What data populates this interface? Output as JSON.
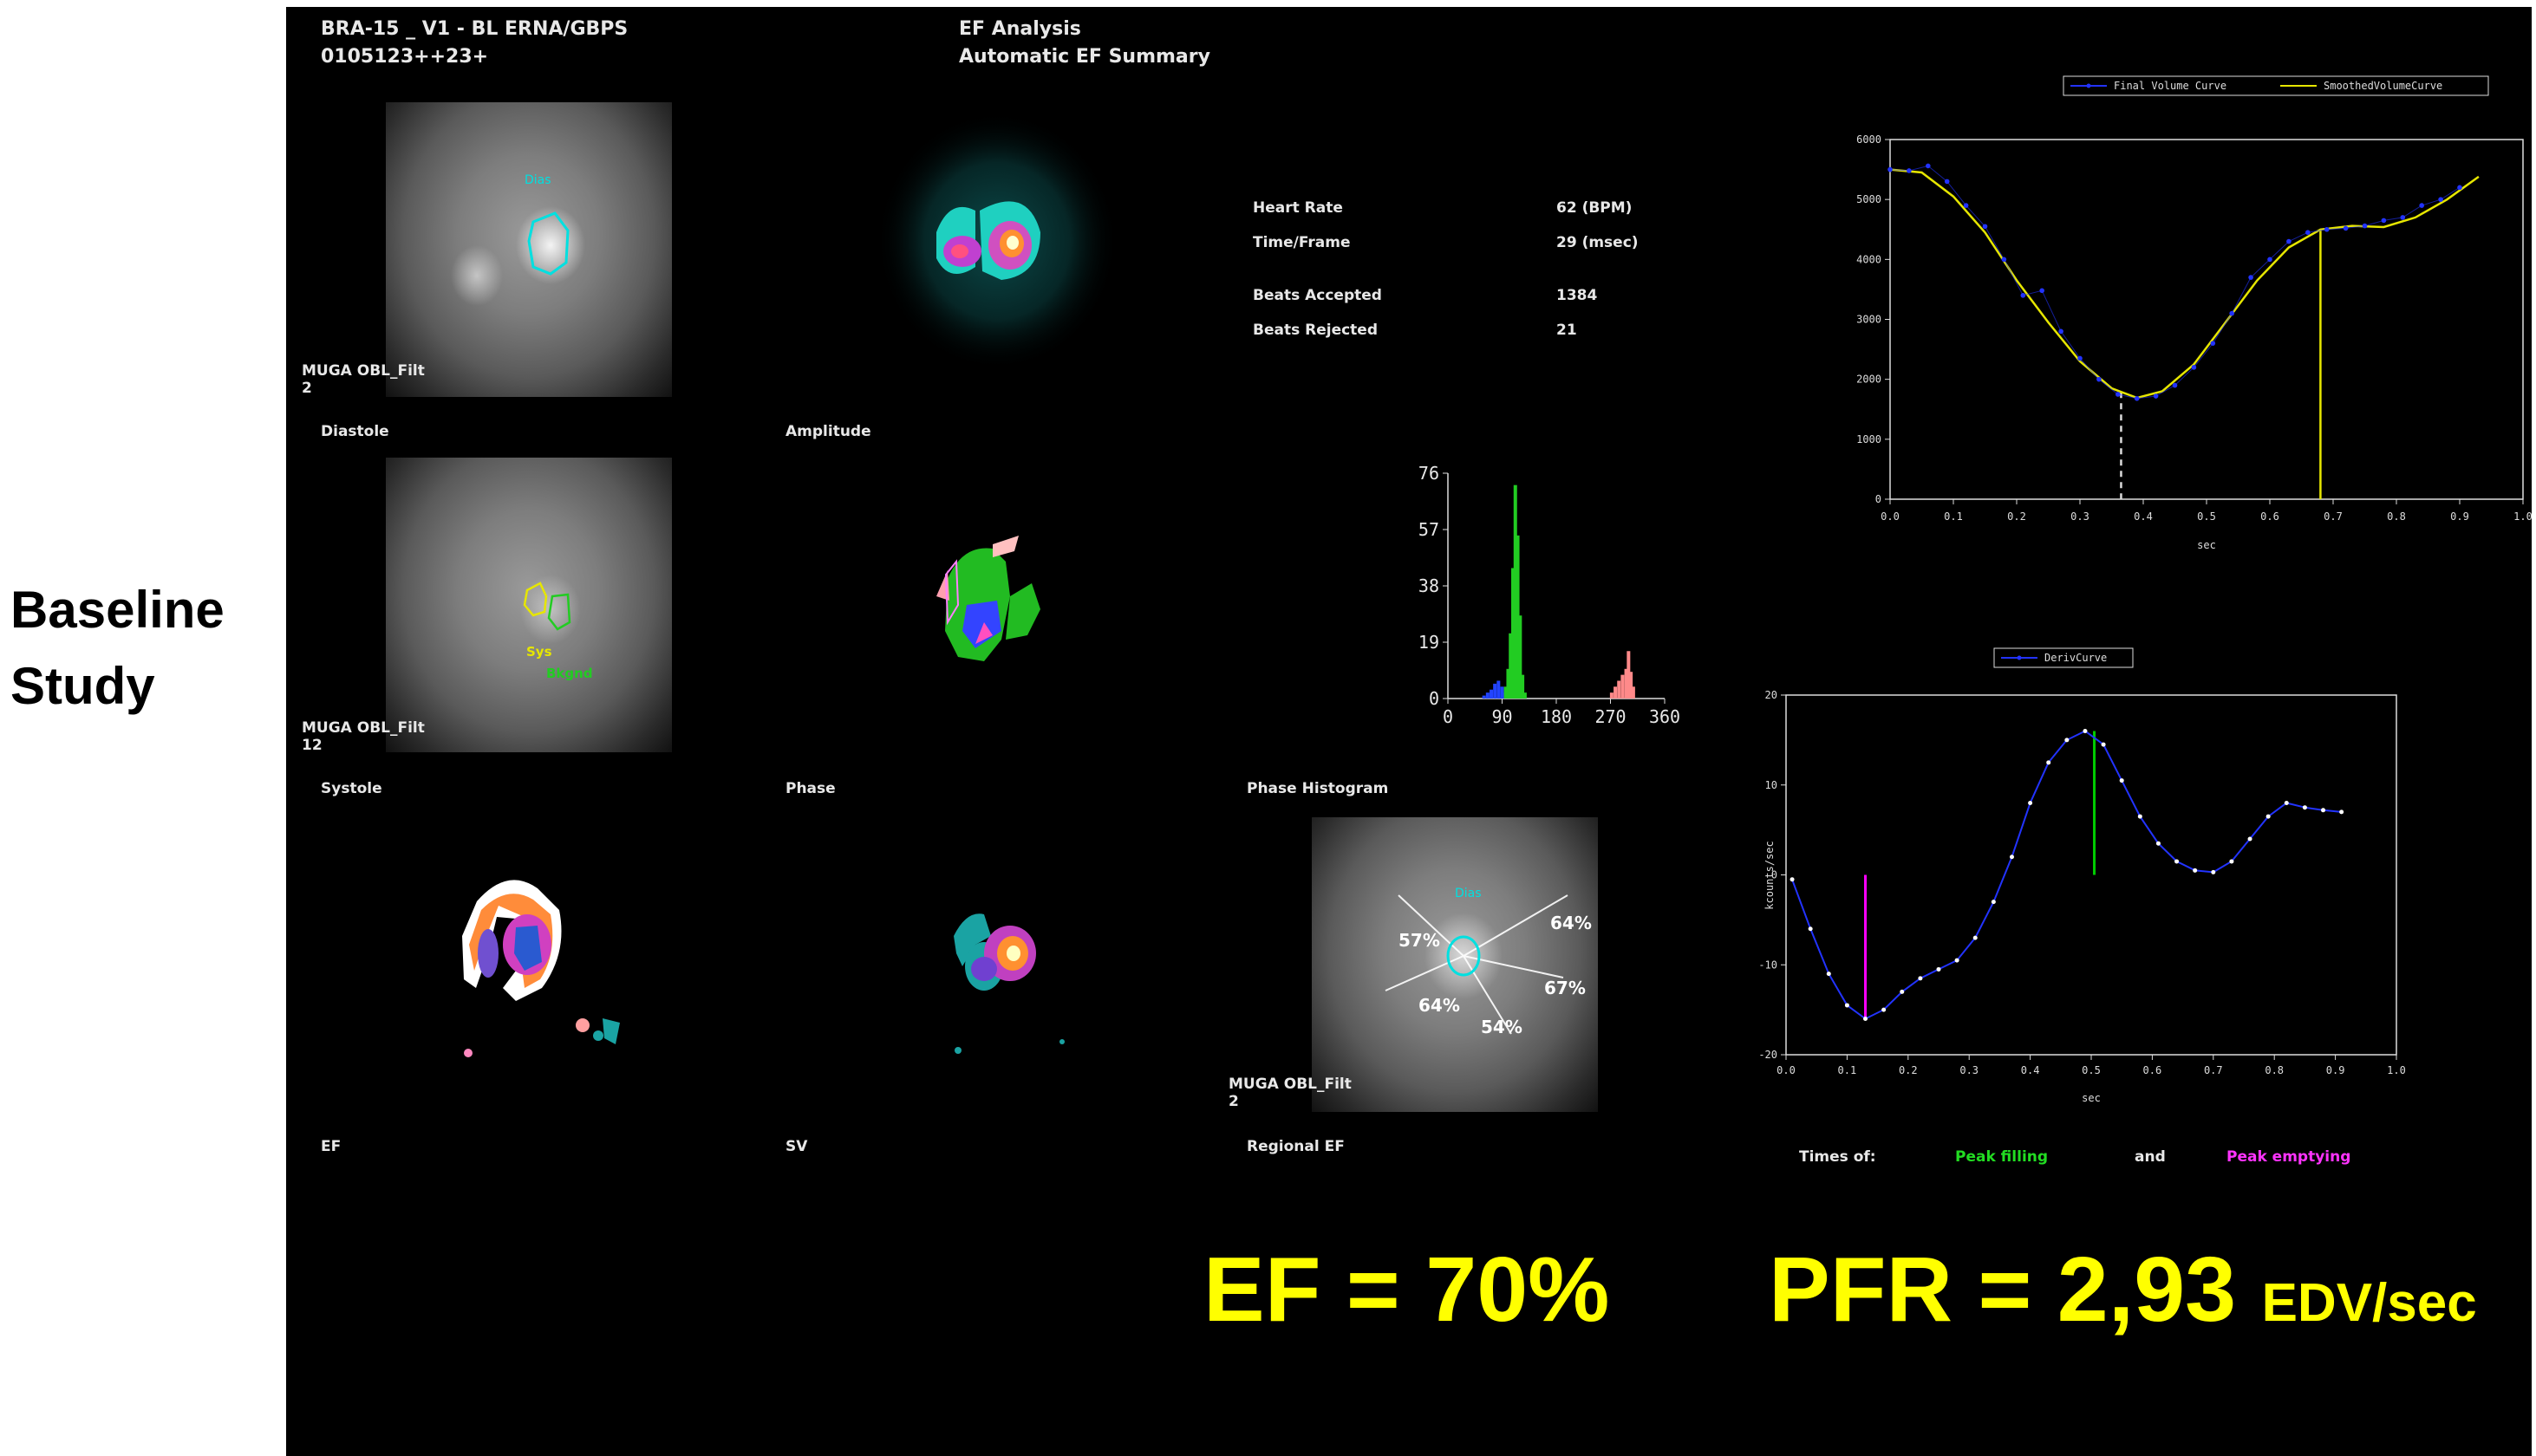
{
  "side_label": {
    "line1": "Baseline",
    "line2": "Study"
  },
  "header": {
    "study_id": "BRA-15 _ V1 - BL ERNA/GBPS",
    "patient_code": "0105123++23+",
    "analysis_title": "EF Analysis",
    "analysis_subtitle": "Automatic EF Summary"
  },
  "panels": {
    "diastole": "Diastole",
    "diastole_caption": "MUGA OBL_Filt",
    "diastole_caption_num": "2",
    "diastole_roi": "Dias",
    "amplitude": "Amplitude",
    "systole": "Systole",
    "systole_caption": "MUGA OBL_Filt",
    "systole_caption_num": "12",
    "systole_roi_sys": "Sys",
    "systole_roi_bkgnd": "Bkgnd",
    "phase": "Phase",
    "phase_histogram": "Phase Histogram",
    "ef": "EF",
    "sv": "SV",
    "regional_ef": "Regional EF",
    "regional_caption": "MUGA OBL_Filt",
    "regional_caption_num": "2",
    "regional_roi": "Dias"
  },
  "stats": {
    "heart_rate_label": "Heart Rate",
    "heart_rate_value": "62 (BPM)",
    "time_frame_label": "Time/Frame",
    "time_frame_value": "29 (msec)",
    "beats_accepted_label": "Beats Accepted",
    "beats_accepted_value": "1384",
    "beats_rejected_label": "Beats Rejected",
    "beats_rejected_value": "21"
  },
  "regional_ef": {
    "values": [
      "57%",
      "64%",
      "67%",
      "54%",
      "64%"
    ]
  },
  "histogram": {
    "y_ticks": [
      "76",
      "57",
      "38",
      "19",
      "0"
    ],
    "x_ticks": [
      "0",
      "90",
      "180",
      "270",
      "360"
    ]
  },
  "footer": {
    "times_of": "Times of:",
    "peak_filling": "Peak filling",
    "and": "and",
    "peak_emptying": "Peak emptying",
    "colors": {
      "peak_filling": "#00cc00",
      "peak_emptying": "#ff00ff"
    }
  },
  "results": {
    "ef_text": "EF = 70%",
    "pfr_text": "PFR = 2,93",
    "pfr_unit": "EDV/sec"
  },
  "chart_data": [
    {
      "type": "line",
      "name": "volume-curve",
      "legend": [
        "Final Volume Curve",
        "SmoothedVolumeCurve"
      ],
      "xlabel": "sec",
      "ylabel": "",
      "xlim": [
        0.0,
        1.0
      ],
      "ylim": [
        0,
        6000
      ],
      "x_ticks": [
        "0.0",
        "0.1",
        "0.2",
        "0.3",
        "0.4",
        "0.5",
        "0.6",
        "0.7",
        "0.8",
        "0.9",
        "1.0"
      ],
      "y_ticks": [
        "0",
        "1000",
        "2000",
        "3000",
        "4000",
        "5000",
        "6000"
      ],
      "series": [
        {
          "name": "Final Volume Curve",
          "color": "#2233ff",
          "x": [
            0.0,
            0.03,
            0.06,
            0.09,
            0.12,
            0.15,
            0.18,
            0.21,
            0.24,
            0.27,
            0.3,
            0.33,
            0.36,
            0.39,
            0.42,
            0.45,
            0.48,
            0.51,
            0.54,
            0.57,
            0.6,
            0.63,
            0.66,
            0.69,
            0.72,
            0.75,
            0.78,
            0.81,
            0.84,
            0.87,
            0.9
          ],
          "y": [
            5500,
            5480,
            5560,
            5300,
            4900,
            4550,
            4000,
            3400,
            3480,
            2800,
            2350,
            2000,
            1750,
            1680,
            1720,
            1900,
            2200,
            2600,
            3100,
            3700,
            4000,
            4300,
            4450,
            4500,
            4520,
            4560,
            4650,
            4700,
            4900,
            5000,
            5200
          ]
        },
        {
          "name": "SmoothedVolumeCurve",
          "color": "#e6e600",
          "x": [
            0.0,
            0.05,
            0.1,
            0.15,
            0.2,
            0.25,
            0.3,
            0.35,
            0.39,
            0.43,
            0.48,
            0.53,
            0.58,
            0.63,
            0.68,
            0.73,
            0.78,
            0.83,
            0.88,
            0.93
          ],
          "y": [
            5500,
            5450,
            5050,
            4450,
            3650,
            2950,
            2300,
            1850,
            1690,
            1800,
            2250,
            2950,
            3650,
            4200,
            4500,
            4560,
            4540,
            4700,
            5000,
            5380
          ]
        }
      ],
      "markers": [
        {
          "x": 0.365,
          "style": "dashed",
          "color": "#dddddd"
        },
        {
          "x": 0.68,
          "style": "solid",
          "color": "#e6e600"
        }
      ]
    },
    {
      "type": "line",
      "name": "deriv-curve",
      "legend": [
        "DerivCurve"
      ],
      "xlabel": "sec",
      "ylabel": "kcounts/sec",
      "xlim": [
        0.0,
        1.0
      ],
      "ylim": [
        -20,
        20
      ],
      "x_ticks": [
        "0.0",
        "0.1",
        "0.2",
        "0.3",
        "0.4",
        "0.5",
        "0.6",
        "0.7",
        "0.8",
        "0.9",
        "1.0"
      ],
      "y_ticks": [
        "20",
        "10",
        "0",
        "-10",
        "-20"
      ],
      "series": [
        {
          "name": "DerivCurve",
          "color": "#2233ff",
          "x": [
            0.01,
            0.04,
            0.07,
            0.1,
            0.13,
            0.16,
            0.19,
            0.22,
            0.25,
            0.28,
            0.31,
            0.34,
            0.37,
            0.4,
            0.43,
            0.46,
            0.49,
            0.52,
            0.55,
            0.58,
            0.61,
            0.64,
            0.67,
            0.7,
            0.73,
            0.76,
            0.79,
            0.82,
            0.85,
            0.88,
            0.91
          ],
          "y": [
            -0.5,
            -6,
            -11,
            -14.5,
            -16,
            -15,
            -13,
            -11.5,
            -10.5,
            -9.5,
            -7,
            -3,
            2,
            8,
            12.5,
            15,
            16,
            14.5,
            10.5,
            6.5,
            3.5,
            1.5,
            0.5,
            0.3,
            1.5,
            4,
            6.5,
            8,
            7.5,
            7.2,
            7.0
          ]
        }
      ],
      "markers": [
        {
          "x": 0.13,
          "color": "#ff00ff",
          "label": "Peak emptying"
        },
        {
          "x": 0.505,
          "color": "#00cc00",
          "label": "Peak filling"
        }
      ]
    },
    {
      "type": "bar",
      "name": "phase-histogram",
      "xlim": [
        0,
        360
      ],
      "ylim": [
        0,
        76
      ],
      "series": [
        {
          "name": "",
          "color": "#2244ff",
          "x": [
            60,
            66,
            72,
            78,
            84,
            90,
            96
          ],
          "values": [
            1,
            2,
            3,
            5,
            6,
            4,
            2
          ]
        },
        {
          "name": "",
          "color": "#22cc22",
          "x": [
            96,
            100,
            104,
            108,
            112,
            116,
            120,
            124,
            128
          ],
          "values": [
            4,
            10,
            22,
            44,
            72,
            55,
            28,
            8,
            2
          ]
        },
        {
          "name": "",
          "color": "#ff8a8a",
          "x": [
            272,
            278,
            284,
            290,
            296,
            300,
            304,
            308
          ],
          "values": [
            2,
            4,
            6,
            8,
            10,
            16,
            9,
            4
          ]
        }
      ]
    }
  ]
}
